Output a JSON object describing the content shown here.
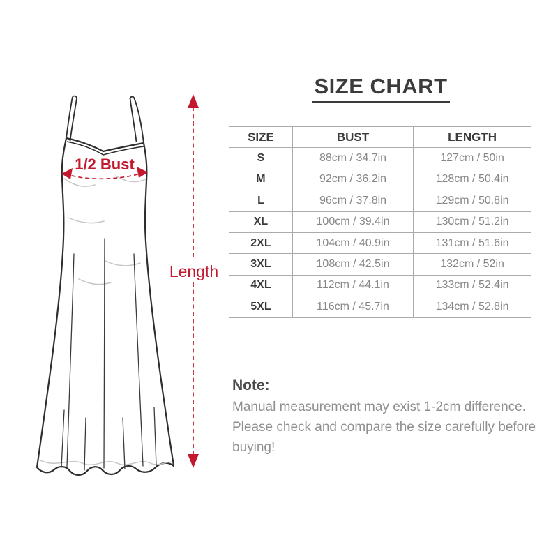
{
  "colors": {
    "accent_red": "#c4182f",
    "outline_dark": "#2e2e2e",
    "text_dark": "#3b3b3b",
    "text_gray": "#868686",
    "table_border": "#ababab"
  },
  "illustration": {
    "type": "sleeveless-long-dress-sketch",
    "bust_label": "1/2 Bust",
    "length_label": "Length"
  },
  "size_chart": {
    "title": "SIZE CHART",
    "columns": [
      "SIZE",
      "BUST",
      "LENGTH"
    ],
    "rows": [
      {
        "size": "S",
        "bust": "88cm / 34.7in",
        "length": "127cm / 50in"
      },
      {
        "size": "M",
        "bust": "92cm / 36.2in",
        "length": "128cm / 50.4in"
      },
      {
        "size": "L",
        "bust": "96cm / 37.8in",
        "length": "129cm / 50.8in"
      },
      {
        "size": "XL",
        "bust": "100cm / 39.4in",
        "length": "130cm / 51.2in"
      },
      {
        "size": "2XL",
        "bust": "104cm / 40.9in",
        "length": "131cm / 51.6in"
      },
      {
        "size": "3XL",
        "bust": "108cm / 42.5in",
        "length": "132cm / 52in"
      },
      {
        "size": "4XL",
        "bust": "112cm / 44.1in",
        "length": "133cm / 52.4in"
      },
      {
        "size": "5XL",
        "bust": "116cm / 45.7in",
        "length": "134cm / 52.8in"
      }
    ]
  },
  "note": {
    "heading": "Note:",
    "body": "Manual measurement may exist 1-2cm difference. Please check and compare the size carefully before buying!"
  }
}
